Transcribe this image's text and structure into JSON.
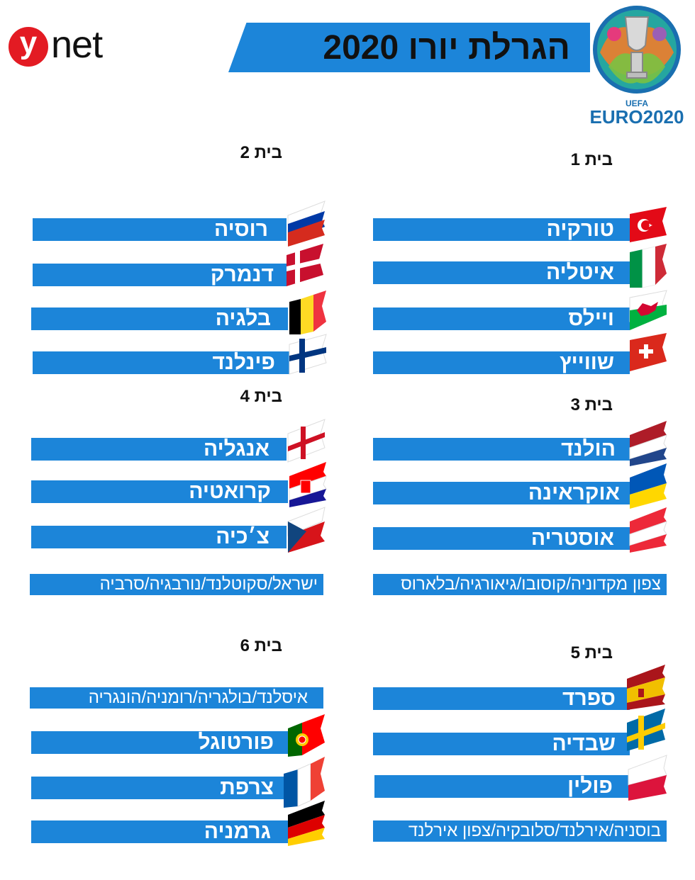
{
  "header": {
    "brand_y": "y",
    "brand_net": "net",
    "title": "הגרלת יורו 2020",
    "emblem_uefa": "UEFA",
    "emblem_euro": "EURO2020"
  },
  "groups": [
    {
      "label": "בית 1",
      "teams": [
        "טורקיה",
        "איטליה",
        "ויילס",
        "שווייץ"
      ],
      "flags": [
        "turkey-flag-icon",
        "italy-flag-icon",
        "wales-flag-icon",
        "switzerland-flag-icon"
      ]
    },
    {
      "label": "בית 2",
      "teams": [
        "רוסיה",
        "דנמרק",
        "בלגיה",
        "פינלנד"
      ],
      "flags": [
        "russia-flag-icon",
        "denmark-flag-icon",
        "belgium-flag-icon",
        "finland-flag-icon"
      ]
    },
    {
      "label": "בית 3",
      "teams": [
        "הולנד",
        "אוקראינה",
        "אוסטריה"
      ],
      "extra": "צפון מקדוניה/קוסובו/גיאורגיה/בלארוס",
      "flags": [
        "netherlands-flag-icon",
        "ukraine-flag-icon",
        "austria-flag-icon"
      ]
    },
    {
      "label": "בית 4",
      "teams": [
        "אנגליה",
        "קרואטיה",
        "צ׳כיה"
      ],
      "extra": "ישראל/סקוטלנד/נורבגיה/סרביה",
      "flags": [
        "england-flag-icon",
        "croatia-flag-icon",
        "czech-flag-icon"
      ]
    },
    {
      "label": "בית 5",
      "teams": [
        "ספרד",
        "שבדיה",
        "פולין"
      ],
      "extra": "בוסניה/אירלנד/סלובקיה/צפון אירלנד",
      "flags": [
        "spain-flag-icon",
        "sweden-flag-icon",
        "poland-flag-icon"
      ]
    },
    {
      "label": "בית 6",
      "teams": [
        "פורטוגל",
        "צרפת",
        "גרמניה"
      ],
      "extra": "איסלנד/בולגריה/רומניה/הונגריה",
      "flags": [
        "portugal-flag-icon",
        "france-flag-icon",
        "germany-flag-icon"
      ]
    }
  ],
  "colors": {
    "bar": "#1c85d9",
    "brand_red": "#e31b23"
  }
}
